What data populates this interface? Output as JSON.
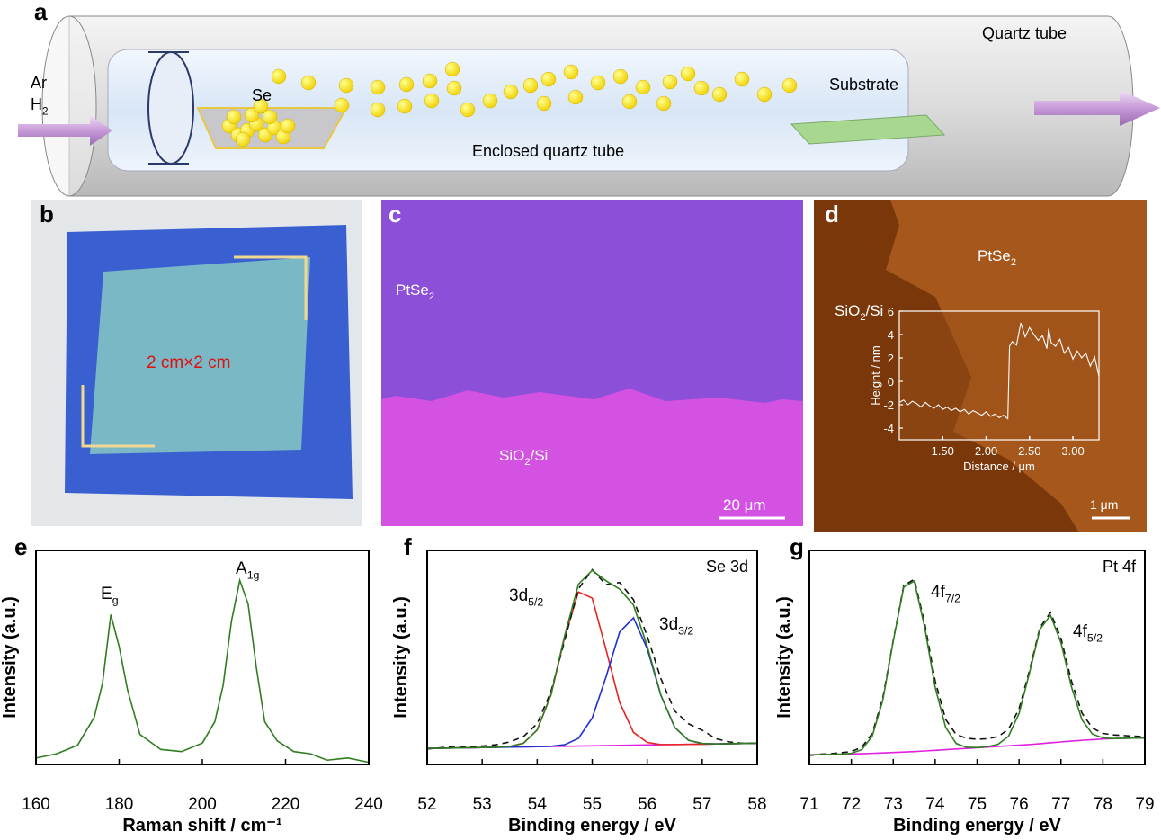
{
  "panel_labels": [
    "a",
    "b",
    "c",
    "d",
    "e",
    "f",
    "g"
  ],
  "panel_a": {
    "gas": [
      "Ar",
      {
        "text": "H",
        "sub": "2"
      }
    ],
    "source": "Se",
    "outer_tube": "Quartz tube",
    "target": "Substrate",
    "inner_tube": "Enclosed quartz tube"
  },
  "panel_b": {
    "size": "2 cm×2 cm"
  },
  "panel_c": {
    "top_region": {
      "text": "PtSe",
      "sub": "2"
    },
    "bottom_region": {
      "text": "SiO",
      "sub": "2",
      "tail": "/Si"
    },
    "scale_bar": "20 μm"
  },
  "panel_d": {
    "top_region": {
      "text": "PtSe",
      "sub": "2"
    },
    "bottom_region": {
      "text": "SiO",
      "sub": "2",
      "tail": "/Si"
    },
    "scale_bar": "1 μm"
  },
  "chart_data": [
    {
      "type": "line",
      "x_label": "Raman shift / cm⁻¹",
      "y_label": "Intensity (a.u.)",
      "x": [
        160,
        165,
        170,
        174,
        176,
        178,
        180,
        182,
        185,
        190,
        195,
        200,
        203,
        205,
        207,
        209,
        211,
        213,
        215,
        218,
        222,
        226,
        230,
        235,
        240
      ],
      "series": [
        {
          "color": "#2f7d1f",
          "values": [
            3,
            5,
            9,
            22,
            38,
            70,
            55,
            35,
            14,
            7,
            6,
            10,
            20,
            37,
            67,
            86,
            75,
            45,
            20,
            11,
            6,
            5,
            2,
            3,
            1
          ]
        }
      ],
      "xlim": [
        160,
        240
      ],
      "xticks": [
        160,
        180,
        200,
        220,
        240
      ],
      "ylim": [
        0,
        100
      ],
      "annotations": [
        {
          "text": "E",
          "sub": "g"
        },
        {
          "text": "A",
          "sub": "1g"
        }
      ]
    },
    {
      "type": "line",
      "x_label": "Binding energy / eV",
      "y_label": "Intensity (a.u.)",
      "label": "Se 3d",
      "x": [
        52,
        52.25,
        52.5,
        52.75,
        53,
        53.25,
        53.5,
        53.75,
        54,
        54.25,
        54.5,
        54.75,
        55,
        55.25,
        55.5,
        55.75,
        56,
        56.25,
        56.5,
        56.75,
        57,
        57.25,
        57.5,
        57.75,
        58
      ],
      "series": [
        {
          "color": "#e020e0",
          "values": [
            7.5,
            7.6,
            7.7,
            7.8,
            7.9,
            8.0,
            8.1,
            8.2,
            8.3,
            8.4,
            8.5,
            8.6,
            8.7,
            8.8,
            8.9,
            9.0,
            9.1,
            9.2,
            9.3,
            9.4,
            9.5,
            9.6,
            9.7,
            9.8,
            9.9
          ]
        },
        {
          "color": "#e8231e",
          "values": [
            7.5,
            7.6,
            7.7,
            7.8,
            7.9,
            8.0,
            8.4,
            9.9,
            16.1,
            32.4,
            59.5,
            80.6,
            77.7,
            53.8,
            28.9,
            15.0,
            10.3,
            9.3,
            9.3,
            9.4,
            9.5,
            9.6,
            9.7,
            9.8,
            9.9
          ]
        },
        {
          "color": "#1f2fd0",
          "values": [
            7.5,
            7.6,
            7.7,
            7.8,
            7.9,
            8.0,
            8.1,
            8.2,
            8.3,
            8.5,
            9.2,
            12.2,
            21.7,
            40.8,
            61.9,
            68.5,
            54.1,
            32.2,
            17.3,
            11.3,
            9.8,
            9.6,
            9.7,
            9.8,
            9.9
          ]
        },
        {
          "color": "#111111",
          "dashed": true,
          "values": [
            7.2,
            7.8,
            8.5,
            8.3,
            8.6,
            9.2,
            10.5,
            13.0,
            19.0,
            34.0,
            58.0,
            82.0,
            91.0,
            84.0,
            85.0,
            77.0,
            60.0,
            40.0,
            25.0,
            19.0,
            16.0,
            12.0,
            10.5,
            9.8,
            10.0
          ]
        },
        {
          "color": "#2f7d1f",
          "values": [
            7.5,
            7.6,
            7.7,
            7.8,
            7.9,
            8.0,
            8.4,
            9.9,
            16.1,
            32.5,
            60.2,
            84.2,
            90.7,
            85.8,
            81.9,
            74.5,
            55.3,
            32.3,
            17.3,
            11.3,
            9.8,
            9.6,
            9.7,
            9.8,
            9.9
          ]
        }
      ],
      "xlim": [
        52,
        58
      ],
      "xticks": [
        52,
        53,
        54,
        55,
        56,
        57,
        58
      ],
      "ylim": [
        0,
        100
      ],
      "annotations": [
        {
          "text": "3d",
          "sub": "5/2"
        },
        {
          "text": "3d",
          "sub": "3/2"
        }
      ]
    },
    {
      "type": "line",
      "x_label": "Binding energy / eV",
      "y_label": "Intensity (a.u.)",
      "label": "Pt 4f",
      "x": [
        71,
        71.25,
        71.5,
        71.75,
        72,
        72.25,
        72.5,
        72.75,
        73,
        73.25,
        73.5,
        73.75,
        74,
        74.25,
        74.5,
        74.75,
        75,
        75.25,
        75.5,
        75.75,
        76,
        76.25,
        76.5,
        76.75,
        77,
        77.25,
        77.5,
        77.75,
        78,
        78.25,
        78.5,
        78.75,
        79
      ],
      "series": [
        {
          "color": "#e020e0",
          "values": [
            4.5,
            4.6,
            4.7,
            4.8,
            4.9,
            5.0,
            5.2,
            5.4,
            5.6,
            5.8,
            6.0,
            6.3,
            6.6,
            6.9,
            7.2,
            7.5,
            7.8,
            8.1,
            8.4,
            8.7,
            9.0,
            9.3,
            9.7,
            10.1,
            10.5,
            10.9,
            11.3,
            11.6,
            11.9,
            12.1,
            12.2,
            12.3,
            12.3
          ]
        },
        {
          "color": "#111111",
          "dashed": true,
          "values": [
            4.2,
            4.8,
            5.0,
            5.5,
            6.0,
            8.0,
            14.5,
            31.0,
            58.0,
            83.5,
            86.5,
            66.0,
            39.0,
            21.0,
            14.0,
            12.2,
            11.8,
            12.0,
            13.0,
            16.5,
            26.0,
            44.0,
            64.0,
            71.0,
            59.0,
            39.0,
            24.0,
            17.0,
            14.5,
            13.8,
            13.5,
            13.2,
            13.0
          ]
        },
        {
          "color": "#2f7d1f",
          "values": [
            4.5,
            4.6,
            4.7,
            4.8,
            5.2,
            6.9,
            13.3,
            29.9,
            57.6,
            82.8,
            85.7,
            64.1,
            36.0,
            17.3,
            9.8,
            8.0,
            7.9,
            8.3,
            9.4,
            13.2,
            23.8,
            42.9,
            63.2,
            69.7,
            56.9,
            36.3,
            20.9,
            14.2,
            12.4,
            12.1,
            12.2,
            12.3,
            12.3
          ]
        }
      ],
      "xlim": [
        71,
        79
      ],
      "xticks": [
        71,
        72,
        73,
        74,
        75,
        76,
        77,
        78,
        79
      ],
      "ylim": [
        0,
        100
      ],
      "annotations": [
        {
          "text": "4f",
          "sub": "7/2"
        },
        {
          "text": "4f",
          "sub": "5/2"
        }
      ]
    },
    {
      "type": "line",
      "x_label": "Distance / μm",
      "y_label": "Height / nm",
      "x": [
        1.0,
        1.05,
        1.1,
        1.15,
        1.2,
        1.25,
        1.3,
        1.35,
        1.4,
        1.45,
        1.5,
        1.55,
        1.6,
        1.65,
        1.7,
        1.75,
        1.8,
        1.85,
        1.9,
        1.95,
        2.0,
        2.05,
        2.1,
        2.15,
        2.2,
        2.25,
        2.27,
        2.3,
        2.35,
        2.4,
        2.45,
        2.5,
        2.55,
        2.6,
        2.65,
        2.7,
        2.72,
        2.75,
        2.8,
        2.85,
        2.9,
        2.95,
        3.0,
        3.05,
        3.1,
        3.15,
        3.2,
        3.25,
        3.3
      ],
      "series": [
        {
          "color": "#ffffff",
          "values": [
            -1.8,
            -1.6,
            -2.0,
            -1.7,
            -1.9,
            -2.2,
            -1.8,
            -2.1,
            -2.3,
            -2.0,
            -2.4,
            -2.2,
            -2.5,
            -2.3,
            -2.6,
            -2.4,
            -2.8,
            -2.5,
            -2.7,
            -2.9,
            -2.6,
            -3.0,
            -2.8,
            -3.1,
            -2.9,
            -3.2,
            3.0,
            3.4,
            3.1,
            5.0,
            3.8,
            4.6,
            4.0,
            3.5,
            3.9,
            2.8,
            4.5,
            3.3,
            3.0,
            3.6,
            2.4,
            2.9,
            1.9,
            2.6,
            2.0,
            2.4,
            1.3,
            2.1,
            0.4
          ]
        }
      ],
      "xlim": [
        1.0,
        3.3
      ],
      "xticks": [
        {
          "value": 1.5,
          "label": "1.50"
        },
        {
          "value": 2,
          "label": "2.00"
        },
        {
          "value": 2.5,
          "label": "2.50"
        },
        {
          "value": 3,
          "label": "3.00"
        }
      ],
      "ylim": [
        -5,
        6
      ],
      "yticks": [
        -4,
        -2,
        0,
        2,
        4,
        6
      ]
    }
  ]
}
